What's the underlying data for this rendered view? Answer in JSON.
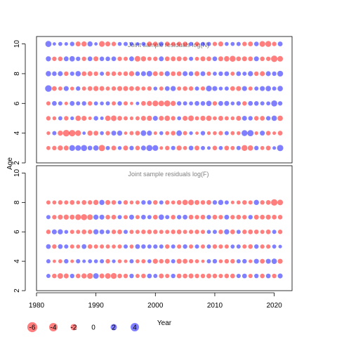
{
  "colors": {
    "positive": "#0000FF",
    "negative": "#FF0000",
    "bubble_alpha": 0.5,
    "frame": "#000000",
    "title": "#808080"
  },
  "chart_data": [
    {
      "type": "scatter",
      "title": "Joint sample residuals log(N)",
      "xlabel": "Year",
      "ylabel": "Age",
      "xlim": [
        1980,
        2023
      ],
      "ylim": [
        2,
        10.5
      ],
      "x_ticks": [
        1980,
        1990,
        2000,
        2010,
        2020
      ],
      "y_ticks": [
        2,
        4,
        6,
        8,
        10
      ],
      "years": [
        1982,
        1983,
        1984,
        1985,
        1986,
        1987,
        1988,
        1989,
        1990,
        1991,
        1992,
        1993,
        1994,
        1995,
        1996,
        1997,
        1998,
        1999,
        2000,
        2001,
        2002,
        2003,
        2004,
        2005,
        2006,
        2007,
        2008,
        2009,
        2010,
        2011,
        2012,
        2013,
        2014,
        2015,
        2016,
        2017,
        2018,
        2019,
        2020,
        2021
      ],
      "ages": [
        3,
        4,
        5,
        6,
        7,
        8,
        9,
        10
      ],
      "residuals": [
        [
          -0.9,
          -1.2,
          -1.8,
          -1.6,
          2.5,
          2.2,
          2.8,
          1.4,
          2.0,
          -3.0,
          1.0,
          -1.5,
          0.8,
          -1.6,
          1.2,
          -1.3,
          1.6,
          2.8,
          2.4,
          -0.6,
          -1.2,
          1.1,
          -1.7,
          -0.9,
          1.4,
          -1.5,
          1.0,
          0.6,
          -1.3,
          0.9,
          -1.4,
          -1.0,
          1.1,
          -2.6,
          -2.0,
          1.2,
          -0.9,
          -1.4,
          0.6,
          3.0
        ],
        [
          -0.7,
          1.0,
          -1.8,
          -3.4,
          -3.2,
          -2.4,
          0.5,
          -1.8,
          -1.5,
          0.8,
          -1.2,
          1.6,
          1.8,
          -0.5,
          -1.0,
          -1.4,
          2.2,
          1.7,
          -0.6,
          0.8,
          -0.9,
          -1.3,
          2.2,
          -1.0,
          0.7,
          -0.5,
          1.2,
          -0.7,
          -0.8,
          -1.1,
          1.0,
          -0.9,
          -0.8,
          2.6,
          2.9,
          -0.7,
          1.6,
          -1.3,
          -0.6,
          -1.4
        ],
        [
          -1.2,
          -0.8,
          1.0,
          -1.2,
          0.7,
          -2.0,
          -1.6,
          -0.6,
          1.3,
          0.6,
          -2.0,
          -2.2,
          -1.4,
          -1.0,
          -0.7,
          -1.0,
          -1.6,
          -1.8,
          1.6,
          -1.5,
          -2.0,
          -1.2,
          0.9,
          -1.6,
          -2.2,
          -1.0,
          -1.7,
          -2.0,
          -0.9,
          -1.6,
          -1.0,
          -0.8,
          -1.6,
          1.5,
          1.2,
          -1.3,
          -1.4,
          1.2,
          2.0,
          -2.0
        ],
        [
          -1.0,
          1.4,
          1.0,
          -0.6,
          1.5,
          1.0,
          1.2,
          -1.2,
          0.9,
          0.8,
          1.0,
          -1.0,
          1.2,
          -1.0,
          -0.5,
          0.6,
          -1.4,
          -1.8,
          -2.4,
          -2.2,
          -2.8,
          -1.8,
          1.2,
          1.0,
          0.9,
          1.4,
          1.3,
          2.0,
          -1.2,
          1.5,
          1.6,
          0.8,
          1.2,
          -1.2,
          1.4,
          1.3,
          1.0,
          0.9,
          2.8,
          1.2
        ],
        [
          3.4,
          -1.4,
          -1.0,
          1.6,
          -0.8,
          1.2,
          -1.0,
          -1.4,
          -1.8,
          -1.5,
          -1.0,
          -1.2,
          -1.6,
          -1.6,
          -1.4,
          -1.4,
          -1.0,
          -1.2,
          0.8,
          -1.0,
          1.4,
          1.8,
          -1.0,
          -1.3,
          -1.2,
          1.0,
          -1.1,
          2.4,
          1.6,
          0.8,
          1.0,
          -1.4,
          -1.6,
          1.6,
          -1.0,
          1.0,
          1.6,
          2.0,
          1.0,
          2.0
        ],
        [
          2.0,
          1.3,
          1.6,
          -1.2,
          1.1,
          2.0,
          -1.4,
          -1.6,
          -1.2,
          1.0,
          -1.2,
          -1.3,
          -1.0,
          -1.3,
          -1.8,
          1.3,
          1.6,
          2.2,
          -1.5,
          -1.2,
          1.8,
          -1.4,
          -1.4,
          1.6,
          1.3,
          -1.6,
          1.5,
          -1.1,
          0.9,
          1.2,
          1.4,
          -1.0,
          1.4,
          1.0,
          1.8,
          -1.2,
          -1.6,
          1.6,
          1.2,
          2.4
        ],
        [
          1.8,
          -1.2,
          -1.3,
          1.5,
          2.0,
          1.2,
          -1.2,
          1.4,
          -1.6,
          1.3,
          1.3,
          1.4,
          -1.2,
          -1.0,
          1.5,
          -2.3,
          -1.8,
          -1.0,
          -1.2,
          1.5,
          -1.4,
          -1.5,
          -1.6,
          -1.2,
          1.0,
          -0.9,
          -1.6,
          -1.4,
          1.4,
          -1.6,
          -2.0,
          -2.6,
          -1.4,
          -1.6,
          -1.4,
          1.6,
          -1.3,
          -1.2,
          -3.2,
          -2.2
        ],
        [
          2.8,
          0.5,
          0.9,
          0.6,
          1.2,
          -1.6,
          -1.8,
          1.8,
          0.5,
          -2.4,
          -1.6,
          -1.2,
          0.8,
          1.0,
          0.8,
          0.6,
          1.0,
          -1.5,
          -1.4,
          1.2,
          -1.3,
          -1.0,
          -1.2,
          -1.4,
          1.0,
          -1.2,
          1.0,
          1.0,
          -1.1,
          -1.6,
          0.8,
          0.9,
          1.0,
          -1.2,
          -1.5,
          1.3,
          -2.4,
          -2.6,
          -1.2,
          1.5
        ]
      ]
    },
    {
      "type": "scatter",
      "title": "Joint sample residuals log(F)",
      "xlabel": "Year",
      "ylabel": "Age",
      "xlim": [
        1980,
        2023
      ],
      "ylim": [
        2,
        10.5
      ],
      "x_ticks": [
        1980,
        1990,
        2000,
        2010,
        2020
      ],
      "y_ticks": [
        2,
        4,
        6,
        8,
        10
      ],
      "years": [
        1982,
        1983,
        1984,
        1985,
        1986,
        1987,
        1988,
        1989,
        1990,
        1991,
        1992,
        1993,
        1994,
        1995,
        1996,
        1997,
        1998,
        1999,
        2000,
        2001,
        2002,
        2003,
        2004,
        2005,
        2006,
        2007,
        2008,
        2009,
        2010,
        2011,
        2012,
        2013,
        2014,
        2015,
        2016,
        2017,
        2018,
        2019,
        2020,
        2021
      ],
      "ages": [
        3,
        4,
        5,
        6,
        7,
        8
      ],
      "residuals": [
        [
          1.0,
          -1.3,
          -2.2,
          -1.6,
          1.2,
          -1.3,
          -1.8,
          -2.4,
          2.2,
          -1.6,
          -2.2,
          -2.6,
          -1.3,
          -1.2,
          1.2,
          -1.0,
          -1.3,
          1.4,
          1.0,
          -1.5,
          -1.1,
          1.2,
          -1.4,
          -1.4,
          -1.6,
          -1.2,
          -1.2,
          -1.5,
          -1.3,
          -1.1,
          -1.3,
          -1.4,
          1.1,
          1.4,
          -1.1,
          1.2,
          -1.3,
          1.4,
          -1.2,
          1.6
        ],
        [
          1.0,
          -0.5,
          -0.9,
          1.2,
          -0.6,
          1.1,
          0.6,
          0.9,
          0.8,
          1.0,
          -1.2,
          0.7,
          -0.8,
          -0.6,
          1.0,
          -0.9,
          -1.0,
          0.9,
          -1.7,
          -1.2,
          -1.5,
          1.0,
          -1.6,
          -1.5,
          -1.1,
          -0.9,
          -0.5,
          1.0,
          1.2,
          -0.8,
          -1.2,
          -1.2,
          1.0,
          1.2,
          -0.7,
          1.6,
          -1.4,
          1.6,
          2.0,
          -1.6
        ],
        [
          1.4,
          -1.2,
          1.4,
          1.0,
          -1.0,
          -0.9,
          1.4,
          -1.3,
          -1.0,
          -1.0,
          -1.0,
          -0.9,
          -1.0,
          1.0,
          -0.9,
          1.4,
          1.2,
          1.0,
          1.1,
          1.0,
          -1.2,
          1.0,
          -1.1,
          1.2,
          -1.0,
          1.0,
          -1.0,
          1.0,
          -1.2,
          -1.1,
          -1.0,
          0.9,
          1.0,
          -1.0,
          -1.3,
          1.2,
          -1.1,
          -1.1,
          0.9,
          0.6
        ],
        [
          -1.2,
          1.6,
          1.8,
          0.8,
          -1.0,
          -1.0,
          -1.4,
          -1.2,
          1.8,
          1.4,
          1.0,
          -1.2,
          -1.4,
          1.0,
          -1.0,
          -1.0,
          -1.2,
          -1.3,
          -1.2,
          -1.0,
          -1.0,
          -1.2,
          -1.4,
          -1.0,
          -1.1,
          -1.2,
          -1.0,
          0.9,
          1.0,
          -1.2,
          1.8,
          -1.4,
          1.0,
          -1.2,
          -1.4,
          -1.3,
          -1.0,
          -1.4,
          1.0,
          -1.2
        ],
        [
          1.0,
          -1.2,
          -1.6,
          -1.8,
          -1.6,
          -2.4,
          -2.8,
          -2.2,
          1.8,
          1.6,
          -1.3,
          -1.4,
          1.0,
          -1.0,
          1.6,
          -1.0,
          1.4,
          1.0,
          -1.4,
          2.0,
          1.0,
          -1.3,
          1.2,
          1.4,
          -1.4,
          -1.2,
          -1.4,
          1.2,
          -1.4,
          -1.2,
          1.5,
          -1.2,
          -1.4,
          -1.2,
          1.2,
          -1.5,
          -1.4,
          -1.6,
          -1.4,
          -1.3
        ],
        [
          -1.0,
          -0.9,
          -1.2,
          -1.0,
          -1.4,
          -0.8,
          -1.4,
          -1.2,
          -1.8,
          1.8,
          -1.6,
          -1.3,
          0.8,
          -1.2,
          -0.8,
          -1.0,
          1.2,
          1.2,
          -1.3,
          1.0,
          -1.2,
          -0.9,
          -1.4,
          -2.0,
          -2.2,
          -1.6,
          -1.3,
          -1.5,
          1.2,
          1.8,
          1.0,
          -0.6,
          -0.9,
          -1.3,
          -1.0,
          1.8,
          -1.2,
          -1.4,
          -3.2,
          -2.2
        ]
      ]
    }
  ],
  "legend": {
    "entries": [
      {
        "label": "-6",
        "value": -6
      },
      {
        "label": "-4",
        "value": -4
      },
      {
        "label": "-2",
        "value": -2
      },
      {
        "label": "0",
        "value": 0
      },
      {
        "label": "2",
        "value": 2
      },
      {
        "label": "4",
        "value": 4
      }
    ],
    "placement": "bottom-left"
  }
}
